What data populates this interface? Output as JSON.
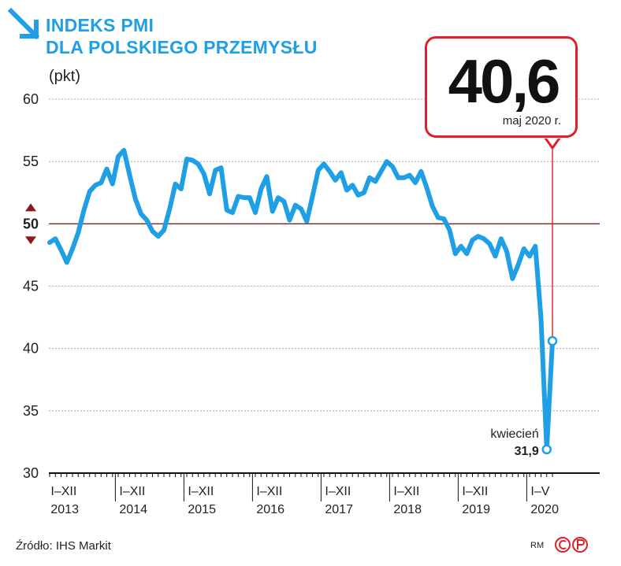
{
  "header": {
    "title_line1": "INDEKS PMI",
    "title_line2": "DLA POLSKIEGO PRZEMYSŁU",
    "unit": "(pkt)"
  },
  "callout": {
    "value": "40,6",
    "date": "maj 2020 r."
  },
  "annotation": {
    "label": "kwiecień",
    "value": "31,9"
  },
  "footer": {
    "source": "Źródło: IHS Markit",
    "credit": "RM"
  },
  "colors": {
    "line": "#1e9fe6",
    "threshold": "#8b1a1a",
    "callout_border": "#e0202b",
    "title": "#1e9fe6"
  },
  "chart_data": {
    "type": "line",
    "ylim": [
      30,
      60
    ],
    "yticks": [
      "60",
      "55",
      "50",
      "45",
      "40",
      "35",
      "30"
    ],
    "ytick_values": [
      60,
      55,
      50,
      45,
      40,
      35,
      30
    ],
    "threshold": {
      "value": 50,
      "label": "50"
    },
    "year_groups": [
      {
        "range": "I–XII",
        "year": "2013"
      },
      {
        "range": "I–XII",
        "year": "2014"
      },
      {
        "range": "I–XII",
        "year": "2015"
      },
      {
        "range": "I–XII",
        "year": "2016"
      },
      {
        "range": "I–XII",
        "year": "2017"
      },
      {
        "range": "I–XII",
        "year": "2018"
      },
      {
        "range": "I–XII",
        "year": "2019"
      },
      {
        "range": "I–V",
        "year": "2020"
      }
    ],
    "series": [
      {
        "values": [
          48.5,
          48.8,
          47.9,
          46.9,
          48.0,
          49.3,
          51.1,
          52.6,
          53.1,
          53.3,
          54.4,
          53.2,
          55.4,
          55.9,
          53.9,
          52.0,
          50.8,
          50.3,
          49.4,
          49.0,
          49.5,
          51.2,
          53.2,
          52.8,
          55.2,
          55.1,
          54.8,
          54.0,
          52.4,
          54.3,
          54.5,
          51.1,
          50.9,
          52.2,
          52.1,
          52.1,
          50.9,
          52.8,
          53.8,
          51.0,
          52.1,
          51.8,
          50.3,
          51.5,
          51.2,
          50.2,
          52.2,
          54.3,
          54.8,
          54.2,
          53.5,
          54.1,
          52.7,
          53.1,
          52.3,
          52.5,
          53.7,
          53.4,
          54.2,
          55.0,
          54.6,
          53.7,
          53.7,
          53.9,
          53.3,
          54.2,
          52.9,
          51.4,
          50.5,
          50.4,
          49.5,
          47.6,
          48.2,
          47.6,
          48.7,
          49.0,
          48.8,
          48.4,
          47.4,
          48.8,
          47.8,
          45.6,
          46.7,
          48.0,
          47.4,
          48.2,
          42.4,
          31.9,
          40.6
        ]
      }
    ]
  }
}
